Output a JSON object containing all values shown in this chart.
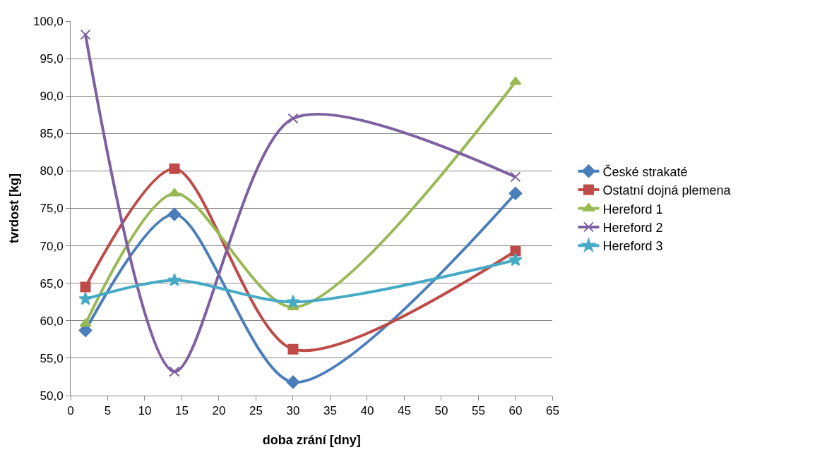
{
  "chart_data": {
    "type": "line",
    "xlabel": "doba zrání [dny]",
    "ylabel": "tvrdost [kg]",
    "x": [
      2,
      14,
      30,
      60
    ],
    "series": [
      {
        "name": "České strakaté",
        "color": "#4a7ebb",
        "marker": "diamond",
        "values": [
          58.7,
          74.2,
          51.8,
          77.0
        ]
      },
      {
        "name": "Ostatní dojná plemena",
        "color": "#be4b48",
        "marker": "square",
        "values": [
          64.5,
          80.3,
          56.2,
          69.3
        ]
      },
      {
        "name": "Hereford 1",
        "color": "#98b954",
        "marker": "triangle",
        "values": [
          59.6,
          77.0,
          61.8,
          91.9
        ]
      },
      {
        "name": "Hereford 2",
        "color": "#7d60a0",
        "marker": "cross",
        "values": [
          98.2,
          53.2,
          87.0,
          79.2
        ]
      },
      {
        "name": "Hereford 3",
        "color": "#46aac5",
        "marker": "star",
        "values": [
          62.9,
          65.4,
          62.5,
          68.1
        ]
      }
    ],
    "xlim": [
      0,
      65
    ],
    "xticks": [
      0,
      5,
      10,
      15,
      20,
      25,
      30,
      35,
      40,
      45,
      50,
      55,
      60,
      65
    ],
    "ylim": [
      50,
      100
    ],
    "yticks": [
      {
        "value": 50,
        "label": "50,0"
      },
      {
        "value": 55,
        "label": "55,0"
      },
      {
        "value": 60,
        "label": "60,0"
      },
      {
        "value": 65,
        "label": "65,0"
      },
      {
        "value": 70,
        "label": "70,0"
      },
      {
        "value": 75,
        "label": "75,0"
      },
      {
        "value": 80,
        "label": "80,0"
      },
      {
        "value": 85,
        "label": "85,0"
      },
      {
        "value": 90,
        "label": "90,0"
      },
      {
        "value": 95,
        "label": "95,0"
      },
      {
        "value": 100,
        "label": "100,0"
      }
    ],
    "grid": "y",
    "legend": "right",
    "line_style": "solid"
  }
}
